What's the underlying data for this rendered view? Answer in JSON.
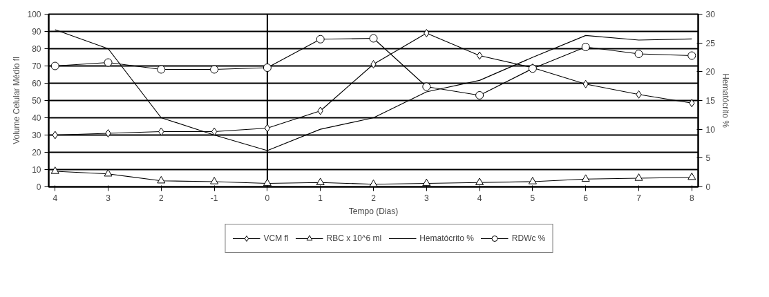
{
  "chart_data": {
    "type": "line",
    "xlabel": "Tempo (Dias)",
    "ylabel": "Volume Celular Médio fl",
    "y2label": "Hematócrito %",
    "categories": [
      "4",
      "3",
      "2",
      "-1",
      "0",
      "1",
      "2",
      "3",
      "4",
      "5",
      "6",
      "7",
      "8"
    ],
    "series": [
      {
        "name": "VCM fl",
        "color": "#000000",
        "marker": "diamond",
        "values": [
          30,
          31,
          32,
          32,
          34,
          44,
          71,
          89,
          76,
          69,
          59.5,
          53.5,
          48.5
        ]
      },
      {
        "name": "RBC x 10^6 ml",
        "color": "#000000",
        "marker": "triangle",
        "values": [
          9,
          7.5,
          3.5,
          3,
          2,
          2.5,
          1.5,
          2,
          2.5,
          3,
          4.5,
          5,
          5.5
        ]
      },
      {
        "name": "Hematócrito %",
        "color": "#000000",
        "marker": "none",
        "axis": "y2",
        "values": [
          27.3,
          24,
          12,
          9,
          6.3,
          10,
          12,
          16.5,
          18.5,
          22.5,
          26.3,
          25.5,
          25.7
        ]
      },
      {
        "name": "RDWc %",
        "color": "#000000",
        "marker": "circle",
        "values": [
          70,
          72,
          68,
          68,
          69,
          85.5,
          86,
          58,
          53,
          68.5,
          81,
          77,
          76
        ]
      }
    ],
    "ylim": [
      0,
      100
    ],
    "yticks": [
      0,
      10,
      20,
      30,
      40,
      50,
      60,
      70,
      80,
      90,
      100
    ],
    "y2lim": [
      0,
      30
    ],
    "y2ticks": [
      0,
      5,
      10,
      15,
      20,
      25,
      30
    ],
    "ref_lines": [
      {
        "axis": "x",
        "value": "0",
        "color": "#000000"
      }
    ],
    "grid": "y",
    "legend": "bottom"
  }
}
